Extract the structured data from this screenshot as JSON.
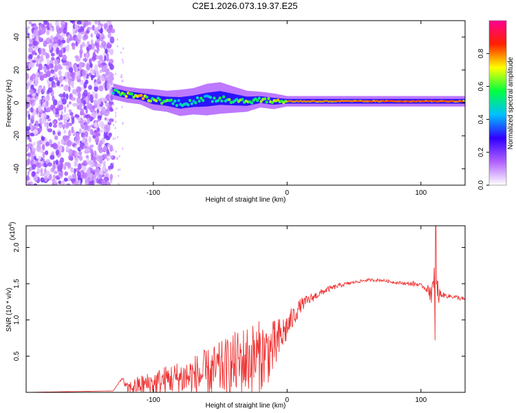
{
  "title": "C2E1.2026.073.19.37.E25",
  "chart_data": [
    {
      "type": "heatmap",
      "xlabel": "Height of straight line (km)",
      "ylabel": "Frequency (Hz)",
      "xlim": [
        -195,
        133
      ],
      "ylim": [
        -50,
        50
      ],
      "x_ticks": [
        -100,
        0,
        100
      ],
      "x_tick_labels": [
        "-100",
        "0",
        "100"
      ],
      "y_ticks": [
        -40,
        -20,
        0,
        20,
        40
      ],
      "y_tick_labels": [
        "-40",
        "-20",
        "0",
        "20",
        "40"
      ],
      "colorbar": {
        "label": "Normalized spectral amplitude",
        "range": [
          0,
          1
        ],
        "ticks": [
          0.0,
          0.2,
          0.4,
          0.6,
          0.8
        ],
        "tick_labels": [
          "0.0",
          "0.2",
          "0.4",
          "0.6",
          "0.8"
        ],
        "colormap": [
          "#ffffff",
          "#b060ff",
          "#3000ff",
          "#00c0ff",
          "#00ff40",
          "#ffff00",
          "#ff2000",
          "#ff0090"
        ]
      },
      "noise_region_km": [
        -195,
        -130
      ],
      "ridge": [
        {
          "x": -130,
          "freq": 7,
          "width": 3,
          "amp": 0.55
        },
        {
          "x": -120,
          "freq": 5,
          "width": 3,
          "amp": 0.65
        },
        {
          "x": -110,
          "freq": 4,
          "width": 3,
          "amp": 0.7
        },
        {
          "x": -100,
          "freq": 2,
          "width": 4,
          "amp": 0.6
        },
        {
          "x": -90,
          "freq": 1,
          "width": 4,
          "amp": 0.55
        },
        {
          "x": -80,
          "freq": 0,
          "width": 5,
          "amp": 0.5
        },
        {
          "x": -70,
          "freq": 1,
          "width": 5,
          "amp": 0.5
        },
        {
          "x": -60,
          "freq": 2,
          "width": 6,
          "amp": 0.5
        },
        {
          "x": -50,
          "freq": 3,
          "width": 6,
          "amp": 0.55
        },
        {
          "x": -40,
          "freq": 2,
          "width": 5,
          "amp": 0.55
        },
        {
          "x": -30,
          "freq": 1,
          "width": 4,
          "amp": 0.6
        },
        {
          "x": -20,
          "freq": 2,
          "width": 3,
          "amp": 0.6
        },
        {
          "x": -10,
          "freq": 1,
          "width": 3,
          "amp": 0.65
        },
        {
          "x": 0,
          "freq": 1,
          "width": 2,
          "amp": 0.7
        },
        {
          "x": 20,
          "freq": 1,
          "width": 2,
          "amp": 0.7
        },
        {
          "x": 40,
          "freq": 1,
          "width": 2,
          "amp": 0.72
        },
        {
          "x": 60,
          "freq": 1,
          "width": 2,
          "amp": 0.75
        },
        {
          "x": 80,
          "freq": 1,
          "width": 2,
          "amp": 0.85
        },
        {
          "x": 100,
          "freq": 1,
          "width": 2,
          "amp": 0.85
        },
        {
          "x": 120,
          "freq": 1,
          "width": 2,
          "amp": 0.8
        },
        {
          "x": 133,
          "freq": 1,
          "width": 2,
          "amp": 0.75
        }
      ]
    },
    {
      "type": "line",
      "xlabel": "Height of straight line (km)",
      "ylabel": "SNR (10 * v/v)",
      "y_multiplier": "(x10",
      "y_multiplier_exp": "4",
      "xlim": [
        -195,
        133
      ],
      "ylim": [
        0,
        2.3
      ],
      "x_ticks": [
        -100,
        0,
        100
      ],
      "x_tick_labels": [
        "-100",
        "0",
        "100"
      ],
      "y_ticks": [
        0.5,
        1.0,
        1.5,
        2.0
      ],
      "y_tick_labels": [
        "0.5",
        "1.0",
        "1.5",
        "2.0"
      ],
      "series": [
        {
          "name": "SNR",
          "color": "#ee3333",
          "x": [
            -195,
            -130,
            -123,
            -120,
            -110,
            -100,
            -90,
            -80,
            -70,
            -60,
            -50,
            -40,
            -30,
            -20,
            -10,
            0,
            10,
            20,
            30,
            40,
            50,
            60,
            70,
            80,
            90,
            95,
            100,
            105,
            108,
            110,
            112,
            115,
            120,
            125,
            133
          ],
          "baseline": [
            0.0,
            0.02,
            0.2,
            0.05,
            0.1,
            0.12,
            0.18,
            0.2,
            0.22,
            0.25,
            0.32,
            0.38,
            0.45,
            0.5,
            0.6,
            0.9,
            1.2,
            1.32,
            1.42,
            1.48,
            1.52,
            1.55,
            1.55,
            1.52,
            1.5,
            1.5,
            1.48,
            1.42,
            1.4,
            1.3,
            1.35,
            1.35,
            1.33,
            1.32,
            1.28
          ],
          "noise_amplitude": [
            0.0,
            0.0,
            0.02,
            0.08,
            0.14,
            0.18,
            0.2,
            0.24,
            0.3,
            0.35,
            0.38,
            0.45,
            0.5,
            0.5,
            0.4,
            0.2,
            0.1,
            0.06,
            0.04,
            0.03,
            0.02,
            0.02,
            0.02,
            0.02,
            0.02,
            0.04,
            0.02,
            0.05,
            0.2,
            0.5,
            0.3,
            0.04,
            0.03,
            0.03,
            0.03
          ],
          "max": 2.3,
          "spike_x": 111
        }
      ]
    }
  ]
}
